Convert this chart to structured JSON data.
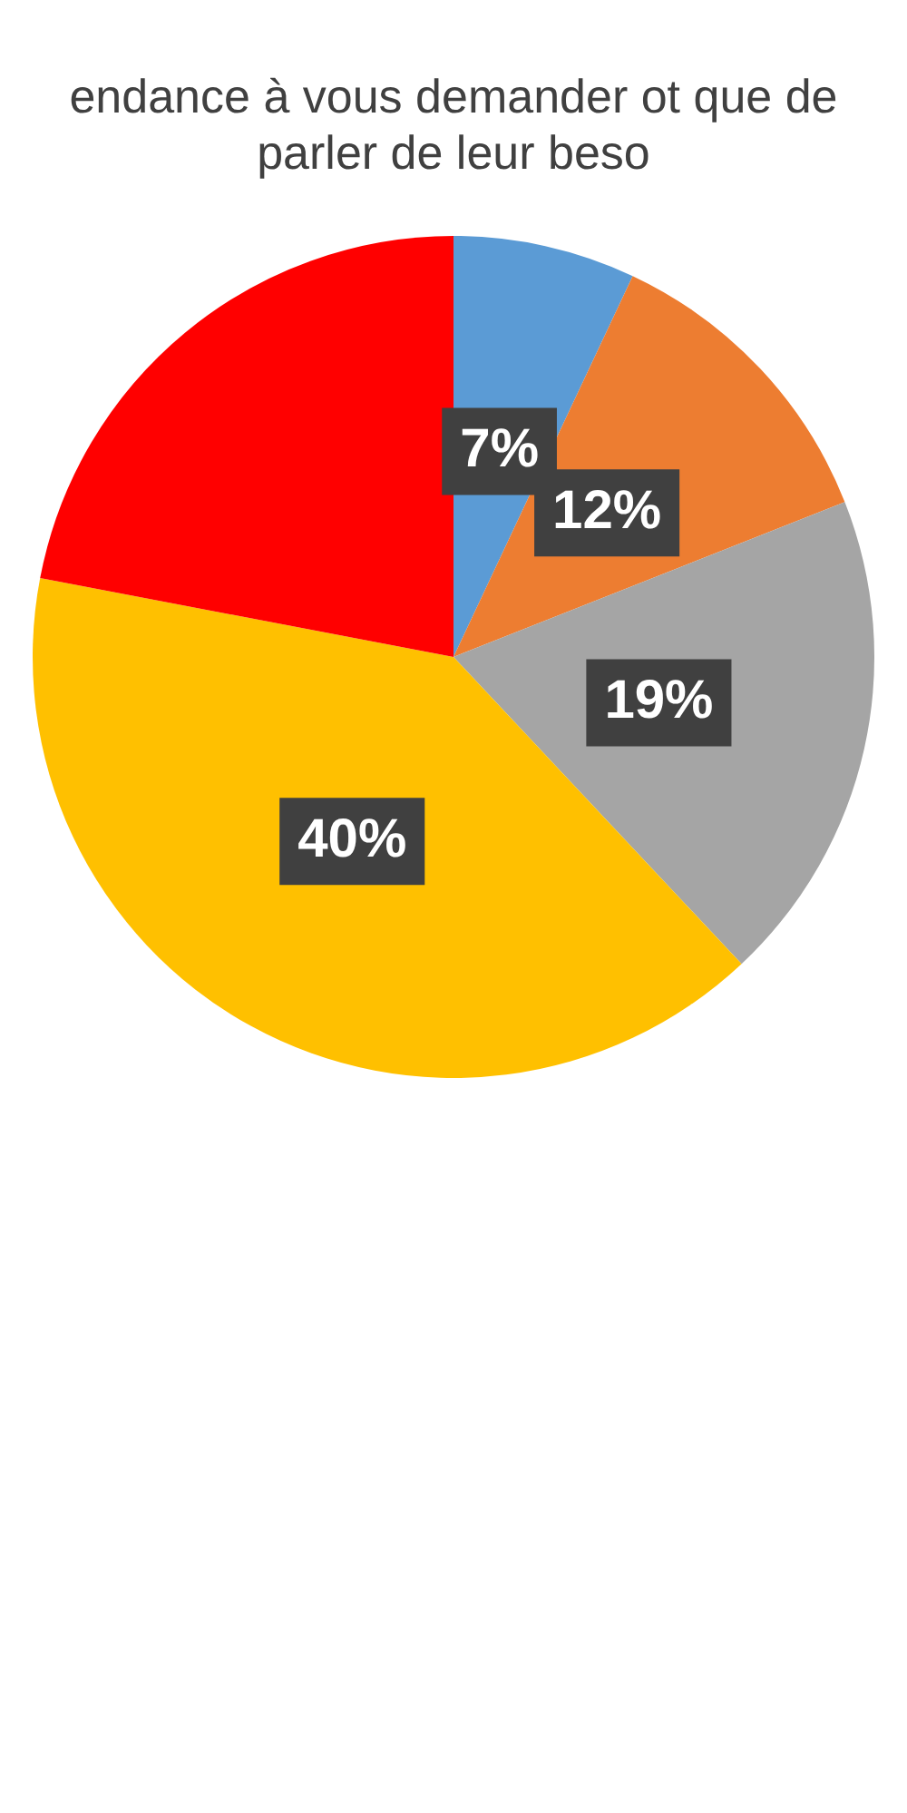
{
  "chart_data": {
    "type": "pie",
    "title": "endance à vous demander ot que de parler de leur beso",
    "categories": [
      null,
      null,
      null,
      null,
      null
    ],
    "values": [
      7,
      12,
      19,
      40,
      22
    ],
    "colors": [
      "#5b9bd5",
      "#ed7d31",
      "#a5a5a5",
      "#ffc000",
      "#ff0000"
    ],
    "value_labels": [
      "7%",
      "12%",
      "19%",
      "40%",
      null
    ]
  }
}
